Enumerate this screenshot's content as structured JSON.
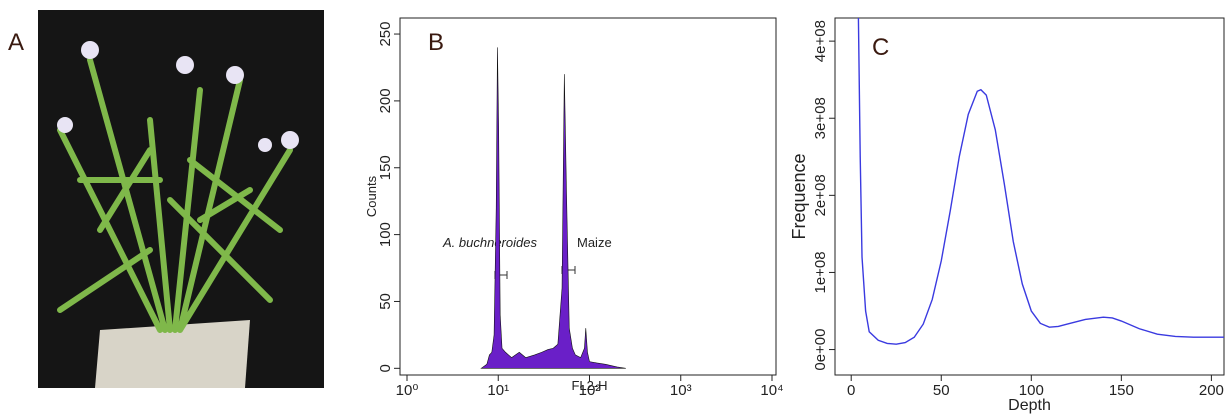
{
  "photo": {
    "label": "A"
  },
  "chart_data": [
    {
      "type": "area",
      "panel_label": "B",
      "x_label": "FL2-H",
      "y_label": "Counts",
      "color": "#6a1fc8",
      "xscale": "log",
      "annotations": [
        "A. buchneroides",
        "Maize"
      ],
      "xlim": [
        1,
        10000
      ],
      "xticks": [
        {
          "value": 1,
          "label": "10⁰"
        },
        {
          "value": 10,
          "label": "10¹"
        },
        {
          "value": 100,
          "label": "10²"
        },
        {
          "value": 1000,
          "label": "10³"
        },
        {
          "value": 10000,
          "label": "10⁴"
        }
      ],
      "ylim": [
        -5,
        262
      ],
      "yticks": [
        0,
        50,
        100,
        150,
        200,
        250
      ],
      "x": [
        6.5,
        7.5,
        8,
        8.5,
        9,
        9.5,
        9.8,
        10.1,
        10.5,
        11,
        12,
        14,
        17,
        20,
        25,
        30,
        35,
        40,
        45,
        50,
        53,
        56,
        60,
        65,
        70,
        80,
        88,
        91,
        95,
        100,
        120,
        150,
        200,
        250
      ],
      "values": [
        0,
        3,
        10,
        12,
        25,
        120,
        240,
        180,
        40,
        15,
        12,
        8,
        12,
        8,
        10,
        12,
        14,
        15,
        18,
        60,
        220,
        130,
        30,
        15,
        10,
        8,
        15,
        30,
        12,
        5,
        4,
        3,
        1,
        0
      ]
    },
    {
      "type": "line",
      "panel_label": "C",
      "x_label": "Depth",
      "y_label": "Frequence",
      "color": "#3a3ae0",
      "xlim": [
        -9,
        207
      ],
      "xticks": [
        0,
        50,
        100,
        150,
        200
      ],
      "ylim": [
        -33000000,
        430000000
      ],
      "yticks": [
        {
          "value": 0,
          "label": "0e+00"
        },
        {
          "value": 100000000,
          "label": "1e+08"
        },
        {
          "value": 200000000,
          "label": "2e+08"
        },
        {
          "value": 300000000,
          "label": "3e+08"
        },
        {
          "value": 400000000,
          "label": "4e+08"
        }
      ],
      "x": [
        4,
        5,
        6,
        8,
        10,
        15,
        20,
        25,
        30,
        35,
        40,
        45,
        50,
        55,
        60,
        65,
        70,
        72,
        75,
        80,
        85,
        90,
        95,
        100,
        105,
        110,
        115,
        120,
        130,
        140,
        145,
        150,
        160,
        170,
        180,
        190,
        200,
        207
      ],
      "values": [
        430000000,
        250000000,
        120000000,
        50000000,
        23000000,
        12000000,
        8000000,
        7000000,
        9000000,
        16000000,
        33000000,
        65000000,
        115000000,
        180000000,
        250000000,
        305000000,
        335000000,
        337000000,
        330000000,
        285000000,
        215000000,
        140000000,
        85000000,
        50000000,
        34000000,
        29000000,
        30000000,
        33000000,
        39000000,
        42000000,
        41000000,
        37000000,
        27000000,
        20000000,
        17000000,
        16000000,
        16000000,
        16000000
      ]
    }
  ]
}
